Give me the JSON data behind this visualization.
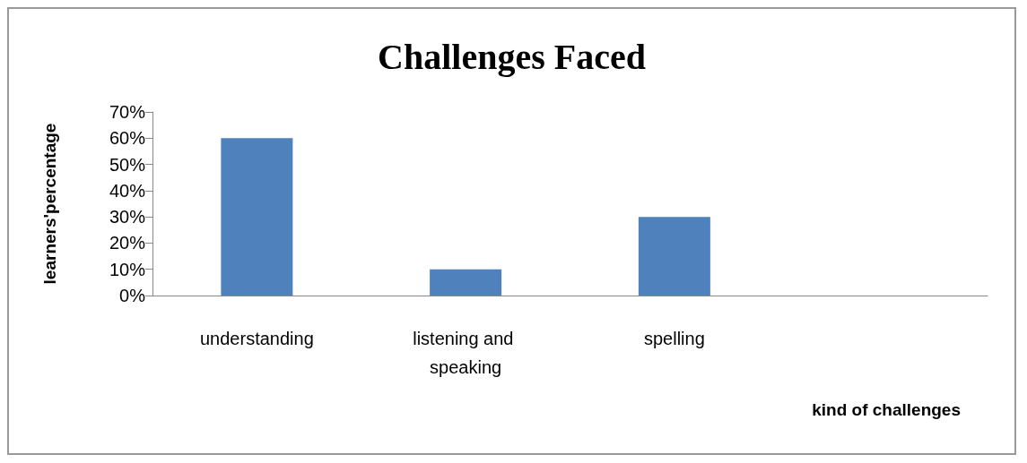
{
  "chart_data": {
    "type": "bar",
    "title": "Challenges Faced",
    "xlabel": "kind of challenges",
    "ylabel": "learners'percentage",
    "categories": [
      "understanding",
      "listening and speaking",
      "spelling",
      null
    ],
    "values": [
      60,
      10,
      30,
      null
    ],
    "color": "#4f81bd",
    "ylim": [
      0,
      70
    ],
    "yticks": [
      {
        "value": 0,
        "label": "0%"
      },
      {
        "value": 10,
        "label": "10%"
      },
      {
        "value": 20,
        "label": "20%"
      },
      {
        "value": 30,
        "label": "30%"
      },
      {
        "value": 40,
        "label": "40%"
      },
      {
        "value": 50,
        "label": "50%"
      },
      {
        "value": 60,
        "label": "60%"
      },
      {
        "value": 70,
        "label": "70%"
      }
    ],
    "grid": false
  }
}
